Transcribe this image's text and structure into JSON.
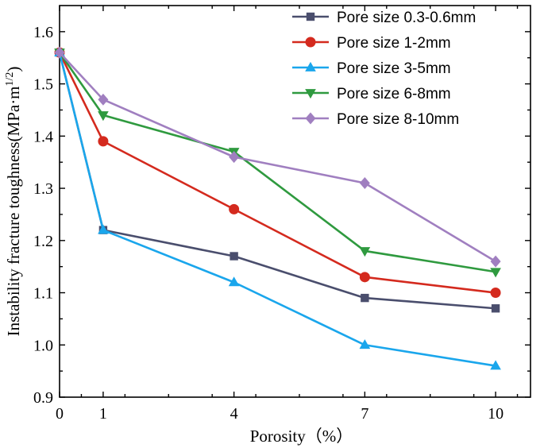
{
  "chart_data": {
    "type": "line",
    "title": "",
    "xlabel": "Porosity（%）",
    "ylabel": "Instability fracture toughness(MPa·m",
    "ylabel_sup": "1/2",
    "ylabel_close": ")",
    "x": [
      0,
      1,
      4,
      7,
      10
    ],
    "xticks": [
      0,
      1,
      4,
      7,
      10
    ],
    "xtick_labels": [
      "0",
      "1",
      "4",
      "7",
      "10"
    ],
    "xlim": [
      0,
      10.8
    ],
    "ylim": [
      0.9,
      1.65
    ],
    "yticks": [
      0.9,
      1.0,
      1.1,
      1.2,
      1.3,
      1.4,
      1.5,
      1.6
    ],
    "ytick_labels": [
      "0.9",
      "1.0",
      "1.1",
      "1.2",
      "1.3",
      "1.4",
      "1.5",
      "1.6"
    ],
    "grid": false,
    "legend_position": "top-right",
    "series": [
      {
        "name": "Pore size 0.3-0.6mm",
        "color": "#4a4e6d",
        "marker": "square",
        "values": [
          1.56,
          1.22,
          1.17,
          1.09,
          1.07
        ]
      },
      {
        "name": "Pore size 1-2mm",
        "color": "#d42a1e",
        "marker": "circle",
        "values": [
          1.56,
          1.39,
          1.26,
          1.13,
          1.1
        ]
      },
      {
        "name": "Pore size 3-5mm",
        "color": "#1aa6ec",
        "marker": "triangle-up",
        "values": [
          1.56,
          1.22,
          1.12,
          1.0,
          0.96
        ]
      },
      {
        "name": "Pore size 6-8mm",
        "color": "#2f9a3f",
        "marker": "triangle-down",
        "values": [
          1.56,
          1.44,
          1.37,
          1.18,
          1.14
        ]
      },
      {
        "name": "Pore size 8-10mm",
        "color": "#a07fc0",
        "marker": "diamond",
        "values": [
          1.56,
          1.47,
          1.36,
          1.31,
          1.16
        ]
      }
    ]
  }
}
